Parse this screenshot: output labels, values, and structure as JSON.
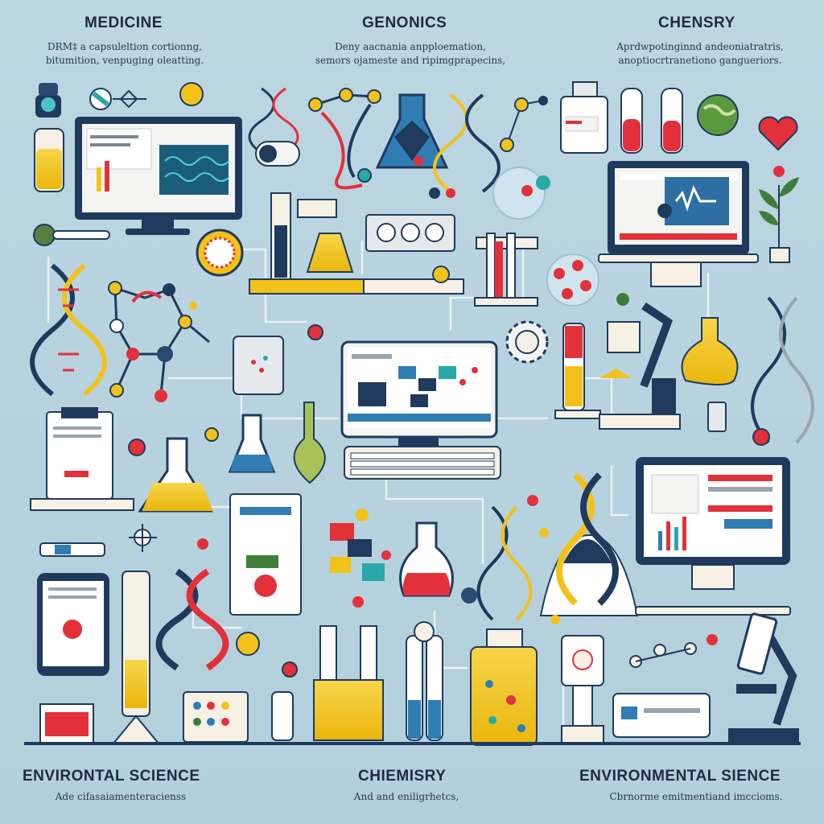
{
  "sections": {
    "top_left": {
      "title": "MEDICINE",
      "lines": [
        "DRM‡ a capsuleltion cortionng,",
        "bitumition, venpuging oleatting."
      ]
    },
    "top_center": {
      "title": "GENONICS",
      "lines": [
        "Deny aacnania anpploemation,",
        "semors ojameste and ripimgprapecins,"
      ]
    },
    "top_right": {
      "title": "CHENSRY",
      "lines": [
        "Aprdwpotinginnd andeoniatratris,",
        "anoptiocrtranetiono gangueriors."
      ]
    },
    "bottom_left": {
      "title": "ENVIRONTAL SCIENCE",
      "lines": [
        "Ade cifasaiamenteracienss"
      ]
    },
    "bottom_center": {
      "title": "CHIEMISRY",
      "lines": [
        "And and eniligrhetcs,"
      ]
    },
    "bottom_right": {
      "title": "ENVIRONMENTAL SIENCE",
      "lines": [
        "Cbrnorme emitmentiand imccioms."
      ]
    }
  },
  "colors": {
    "background": "#b9d3df",
    "navy": "#1f3a5c",
    "yellow": "#f2c21b",
    "red": "#e2313b",
    "teal": "#2aa8a8",
    "cream": "#f6f1e4"
  },
  "icons": [
    "dna-icon",
    "molecule-icon",
    "flask-icon",
    "microscope-icon",
    "computer-monitor-icon",
    "test-tube-icon",
    "heart-icon",
    "globe-icon",
    "plant-icon",
    "virus-icon",
    "tablet-icon",
    "bottle-icon",
    "keyboard-icon"
  ]
}
